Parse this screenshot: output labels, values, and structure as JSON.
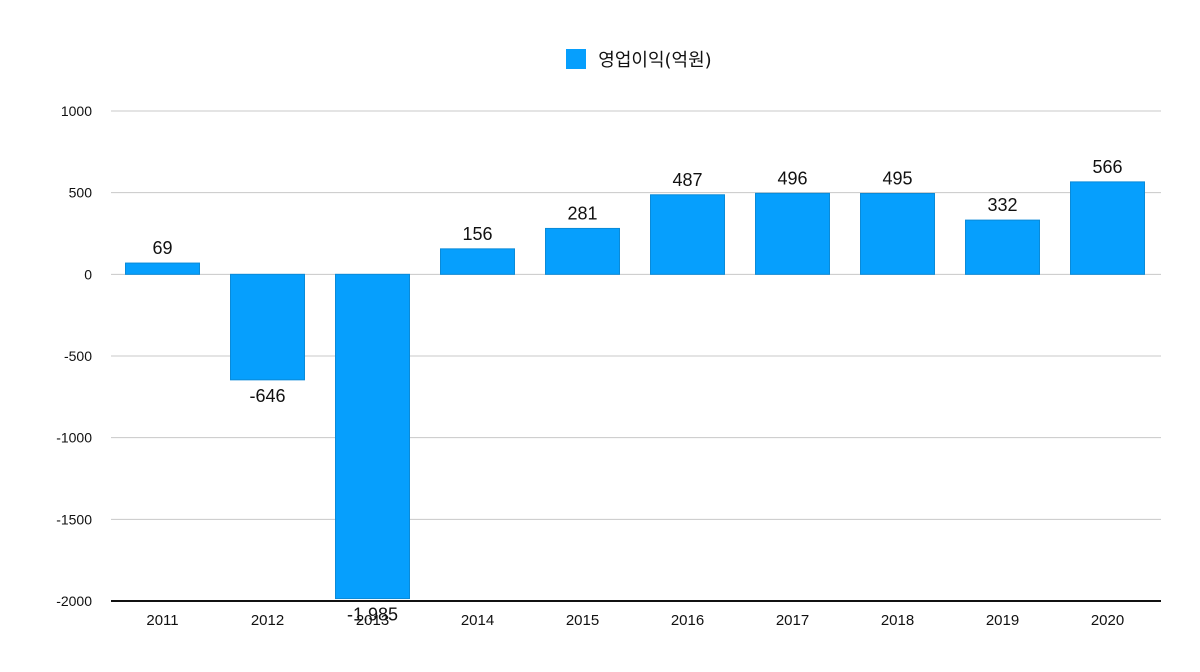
{
  "chart_data": {
    "type": "bar",
    "categories": [
      "2011",
      "2012",
      "2013",
      "2014",
      "2015",
      "2016",
      "2017",
      "2018",
      "2019",
      "2020"
    ],
    "series": [
      {
        "name": "영업이익(억원)",
        "values": [
          69,
          -646,
          -1985,
          156,
          281,
          487,
          496,
          495,
          332,
          566
        ],
        "labels": [
          "69",
          "-646",
          "-1,985",
          "156",
          "281",
          "487",
          "496",
          "495",
          "332",
          "566"
        ],
        "color": "#069ffd"
      }
    ],
    "yticks": [
      "1000",
      "500",
      "0",
      "-500",
      "-1000",
      "-1500",
      "-2000"
    ],
    "ylim": [
      -2000,
      1000
    ],
    "grid": true,
    "legend_position": "top-center",
    "title": "",
    "xlabel": "",
    "ylabel": ""
  }
}
